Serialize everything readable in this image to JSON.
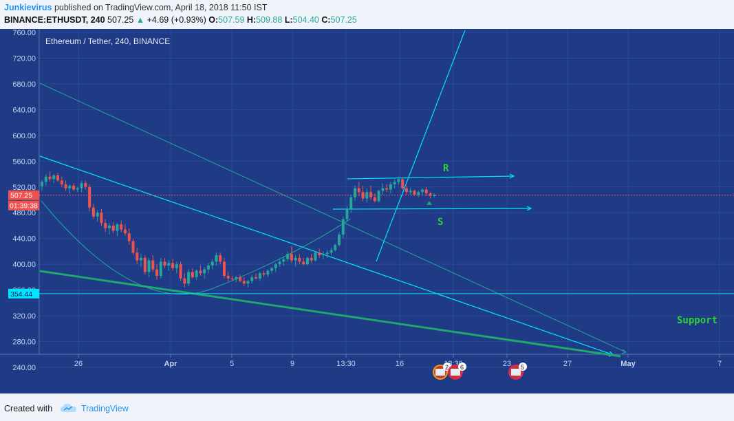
{
  "header": {
    "author": "Junkievirus",
    "published_text": "published on TradingView.com, April 18, 2018 11:50 IST",
    "symbol": "BINANCE:ETHUSDT, 240",
    "last": "507.25",
    "change": "+4.69 (+0.93%)",
    "open_label": "O:",
    "open": "507.59",
    "high_label": "H:",
    "high": "509.88",
    "low_label": "L:",
    "low": "504.40",
    "close_label": "C:",
    "close": "507.25"
  },
  "footer": {
    "created_with": "Created with",
    "brand": "TradingView"
  },
  "colors": {
    "background": "#1f3b86",
    "up": "#26a69a",
    "down": "#ef5350",
    "line": "#00e5ff",
    "support": "#21a76b",
    "label_green": "#2ed138"
  },
  "chart_data": {
    "type": "candlestick",
    "title": "Ethereum / Tether, 240, BINANCE",
    "ylim": [
      220,
      768
    ],
    "y_ticks": [
      "760.00",
      "720.00",
      "680.00",
      "640.00",
      "600.00",
      "560.00",
      "520.00",
      "480.00",
      "440.00",
      "400.00",
      "360.00",
      "320.00",
      "280.00",
      "240.00"
    ],
    "x_ticks": [
      "26",
      "Apr",
      "5",
      "9",
      "13:30",
      "16",
      "13:30",
      "23",
      "27",
      "May",
      "7"
    ],
    "price_label": "507.25",
    "countdown_label": "01:39:38",
    "level_label": "354.44",
    "level_value": 354.44,
    "grid": true,
    "candles": [
      [
        521,
        531,
        514,
        528
      ],
      [
        528,
        540,
        522,
        536
      ],
      [
        536,
        544,
        528,
        532
      ],
      [
        532,
        540,
        526,
        538
      ],
      [
        538,
        542,
        528,
        530
      ],
      [
        530,
        536,
        520,
        524
      ],
      [
        524,
        530,
        514,
        518
      ],
      [
        518,
        524,
        510,
        522
      ],
      [
        522,
        526,
        514,
        516
      ],
      [
        516,
        520,
        512,
        518
      ],
      [
        518,
        530,
        512,
        526
      ],
      [
        526,
        530,
        516,
        520
      ],
      [
        520,
        524,
        482,
        488
      ],
      [
        488,
        494,
        470,
        474
      ],
      [
        474,
        484,
        466,
        480
      ],
      [
        480,
        486,
        460,
        464
      ],
      [
        464,
        470,
        450,
        456
      ],
      [
        456,
        464,
        446,
        460
      ],
      [
        460,
        466,
        448,
        452
      ],
      [
        452,
        464,
        444,
        462
      ],
      [
        462,
        468,
        450,
        454
      ],
      [
        454,
        462,
        444,
        448
      ],
      [
        448,
        456,
        430,
        436
      ],
      [
        436,
        440,
        414,
        418
      ],
      [
        418,
        426,
        400,
        406
      ],
      [
        406,
        416,
        396,
        410
      ],
      [
        410,
        414,
        384,
        388
      ],
      [
        388,
        410,
        380,
        406
      ],
      [
        406,
        414,
        388,
        392
      ],
      [
        392,
        400,
        376,
        382
      ],
      [
        382,
        410,
        378,
        404
      ],
      [
        404,
        410,
        394,
        398
      ],
      [
        398,
        406,
        390,
        402
      ],
      [
        402,
        408,
        390,
        394
      ],
      [
        394,
        404,
        386,
        400
      ],
      [
        400,
        404,
        374,
        378
      ],
      [
        378,
        386,
        364,
        370
      ],
      [
        370,
        392,
        366,
        388
      ],
      [
        388,
        394,
        378,
        380
      ],
      [
        380,
        392,
        376,
        390
      ],
      [
        390,
        398,
        382,
        386
      ],
      [
        386,
        396,
        378,
        392
      ],
      [
        392,
        402,
        386,
        398
      ],
      [
        398,
        408,
        392,
        404
      ],
      [
        404,
        418,
        398,
        414
      ],
      [
        414,
        418,
        400,
        404
      ],
      [
        404,
        410,
        378,
        382
      ],
      [
        382,
        388,
        374,
        378
      ],
      [
        378,
        382,
        374,
        377
      ],
      [
        377,
        382,
        372,
        380
      ],
      [
        380,
        384,
        372,
        374
      ],
      [
        374,
        380,
        366,
        370
      ],
      [
        370,
        376,
        364,
        374
      ],
      [
        374,
        384,
        370,
        380
      ],
      [
        380,
        386,
        376,
        378
      ],
      [
        378,
        388,
        374,
        386
      ],
      [
        386,
        390,
        380,
        384
      ],
      [
        384,
        392,
        380,
        390
      ],
      [
        390,
        396,
        386,
        394
      ],
      [
        394,
        402,
        388,
        400
      ],
      [
        400,
        408,
        396,
        404
      ],
      [
        404,
        412,
        398,
        408
      ],
      [
        408,
        420,
        404,
        416
      ],
      [
        416,
        428,
        402,
        406
      ],
      [
        406,
        414,
        396,
        410
      ],
      [
        410,
        416,
        400,
        404
      ],
      [
        404,
        410,
        398,
        400
      ],
      [
        400,
        412,
        398,
        410
      ],
      [
        410,
        416,
        402,
        406
      ],
      [
        406,
        420,
        404,
        418
      ],
      [
        418,
        424,
        410,
        414
      ],
      [
        414,
        420,
        408,
        416
      ],
      [
        416,
        422,
        410,
        418
      ],
      [
        418,
        426,
        414,
        422
      ],
      [
        422,
        432,
        420,
        430
      ],
      [
        430,
        450,
        428,
        446
      ],
      [
        446,
        474,
        440,
        470
      ],
      [
        470,
        490,
        466,
        486
      ],
      [
        486,
        508,
        480,
        504
      ],
      [
        504,
        522,
        498,
        518
      ],
      [
        518,
        528,
        506,
        512
      ],
      [
        512,
        522,
        498,
        502
      ],
      [
        502,
        518,
        496,
        512
      ],
      [
        512,
        522,
        500,
        504
      ],
      [
        504,
        510,
        496,
        498
      ],
      [
        498,
        516,
        496,
        514
      ],
      [
        514,
        526,
        508,
        518
      ],
      [
        518,
        524,
        512,
        516
      ],
      [
        516,
        528,
        510,
        524
      ],
      [
        524,
        532,
        518,
        528
      ],
      [
        528,
        536,
        524,
        532
      ],
      [
        532,
        534,
        516,
        518
      ],
      [
        518,
        522,
        508,
        512
      ],
      [
        512,
        518,
        508,
        514
      ],
      [
        514,
        516,
        506,
        508
      ],
      [
        508,
        514,
        504,
        512
      ],
      [
        512,
        518,
        508,
        516
      ],
      [
        516,
        520,
        506,
        510
      ],
      [
        510,
        512,
        502,
        506
      ],
      [
        506,
        510,
        504,
        508
      ]
    ]
  },
  "annotations": {
    "resistance": "R",
    "support_short": "S",
    "support_zone": "Support"
  },
  "events": [
    {
      "icon": "us-flag-event-icon",
      "count": "2"
    },
    {
      "icon": "us-flag-event-icon",
      "count": "6"
    },
    {
      "icon": "us-flag-event-icon",
      "count": "5"
    }
  ]
}
